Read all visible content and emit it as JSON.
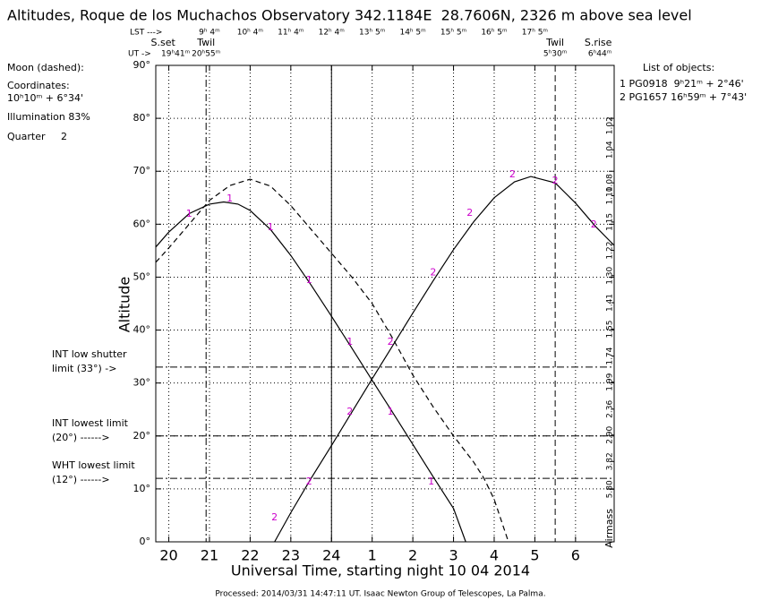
{
  "chart_data": {
    "type": "line",
    "title": "Altitudes, Roque de los Muchachos Observatory 342.1184E  28.7606N, 2326 m above sea level",
    "xlabel": "Universal Time, starting night 10 04 2014",
    "ylabel": "Altitude",
    "y2label": "Airmass",
    "xlim": [
      19.68,
      30.95
    ],
    "xticks": [
      20,
      21,
      22,
      23,
      24,
      {
        "value": 25,
        "label": "1"
      },
      {
        "value": 26,
        "label": "2"
      },
      {
        "value": 27,
        "label": "3"
      },
      {
        "value": 28,
        "label": "4"
      },
      {
        "value": 29,
        "label": "5"
      },
      {
        "value": 30,
        "label": "6"
      }
    ],
    "ylim": [
      0,
      90
    ],
    "yticks": [
      {
        "value": 0,
        "label": "0°"
      },
      {
        "value": 10,
        "label": "10°"
      },
      {
        "value": 20,
        "label": "20°"
      },
      {
        "value": 30,
        "label": "30°"
      },
      {
        "value": 40,
        "label": "40°"
      },
      {
        "value": 50,
        "label": "50°"
      },
      {
        "value": 60,
        "label": "60°"
      },
      {
        "value": 70,
        "label": "70°"
      },
      {
        "value": 80,
        "label": "80°"
      },
      {
        "value": 90,
        "label": "90°"
      }
    ],
    "y2ticks": [
      1.02,
      1.04,
      1.08,
      {
        "value": 1.1,
        "label": "1.10"
      },
      1.15,
      1.22,
      {
        "value": 1.3,
        "label": "1.30"
      },
      1.41,
      1.55,
      1.74,
      1.99,
      2.36,
      {
        "value": 2.9,
        "label": "2.90"
      },
      3.82,
      {
        "value": 5.8,
        "label": "5.80"
      }
    ],
    "grid": true,
    "line_color": "#000000",
    "marker_color": "#cc00cc",
    "series": [
      {
        "name": "1",
        "dashed": false,
        "x": [
          19.68,
          20,
          20.5,
          21,
          21.35,
          21.7,
          22,
          22.5,
          23,
          23.5,
          24,
          24.5,
          25,
          25.5,
          26,
          26.5,
          27,
          27.3
        ],
        "values": [
          55.7,
          58.5,
          62,
          63.8,
          64.2,
          63.8,
          62.6,
          59,
          54.1,
          48.5,
          42.6,
          36.6,
          30.5,
          24.5,
          18.4,
          12.3,
          6.3,
          0
        ],
        "label_x": [
          20.5,
          21.5,
          22.5,
          23.45,
          24.45,
          25.45,
          26.45
        ],
        "label_y": [
          61.9,
          64.8,
          59.4,
          49.4,
          37.7,
          24.5,
          11.3
        ]
      },
      {
        "name": "2",
        "dashed": false,
        "x": [
          22.6,
          23,
          23.5,
          24,
          24.5,
          25,
          25.5,
          26,
          26.5,
          27,
          27.5,
          28,
          28.5,
          28.9,
          29.5,
          30,
          30.5,
          30.95
        ],
        "values": [
          0,
          5.5,
          12,
          18.2,
          24.5,
          30.8,
          37,
          43.2,
          49.3,
          55.2,
          60.5,
          65,
          68,
          69,
          67.8,
          64,
          59.5,
          56
        ],
        "label_x": [
          22.6,
          23.45,
          24.45,
          25.45,
          26.5,
          27.4,
          28.45,
          29.5,
          30.45
        ],
        "label_y": [
          4.6,
          11.3,
          24.5,
          37.7,
          50.8,
          62.1,
          69.4,
          68.2,
          59.9
        ]
      },
      {
        "dashed": true,
        "x": [
          19.68,
          20,
          20.5,
          21,
          21.5,
          22,
          22.5,
          23,
          23.5,
          24,
          24.5,
          25,
          25.5,
          26,
          26.5,
          27,
          27.5,
          27.75,
          28,
          28.35
        ],
        "values": [
          52.8,
          55.5,
          60,
          64.5,
          67.3,
          68.5,
          67.2,
          63.5,
          59,
          54.5,
          50,
          45,
          38.5,
          31.5,
          25.5,
          20,
          15,
          12,
          8,
          0
        ]
      }
    ],
    "events": [
      {
        "label": "S.set",
        "time": "19ʰ41ᵐ",
        "x": 19.683
      },
      {
        "label": "Twil",
        "time": "20ʰ55ᵐ",
        "x": 20.917,
        "line": "dashdot"
      },
      {
        "label": "Twil",
        "time": "5ʰ30ᵐ",
        "x": 29.5,
        "line": "dashed"
      },
      {
        "label": "S.rise",
        "time": "6ʰ44ᵐ",
        "x": 30.733
      }
    ],
    "ut_label": "UT ->",
    "lst": {
      "label": "LST --->",
      "x": [
        21,
        22,
        23,
        24,
        25,
        26,
        27,
        28,
        29
      ],
      "values": [
        "9ʰ 4ᵐ",
        "10ʰ 4ᵐ",
        "11ʰ 4ᵐ",
        "12ʰ 4ᵐ",
        "13ʰ 5ᵐ",
        "14ʰ 5ᵐ",
        "15ʰ 5ᵐ",
        "16ʰ 5ᵐ",
        "17ʰ 5ᵐ"
      ]
    },
    "limits": [
      {
        "label": [
          "INT low shutter",
          "limit (33°) ->"
        ],
        "value": 33
      },
      {
        "label": [
          "INT lowest limit",
          "(20°) ------>"
        ],
        "value": 20
      },
      {
        "label": [
          "WHT lowest limit",
          "(12°) ------>"
        ],
        "value": 12
      }
    ]
  },
  "moon": {
    "title": "Moon (dashed):",
    "coordinates_label": "Coordinates:",
    "coordinates": "10ʰ10ᵐ + 6°34'",
    "illumination": "Illumination 83%",
    "quarter": "Quarter     2"
  },
  "objects": {
    "title": "List of objects:",
    "rows": [
      "1 PG0918  9ʰ21ᵐ + 2°46'",
      "2 PG1657 16ʰ59ᵐ + 7°43'"
    ]
  },
  "footer": "Processed: 2014/03/31 14:47:11 UT. Isaac Newton Group of Telescopes, La Palma."
}
